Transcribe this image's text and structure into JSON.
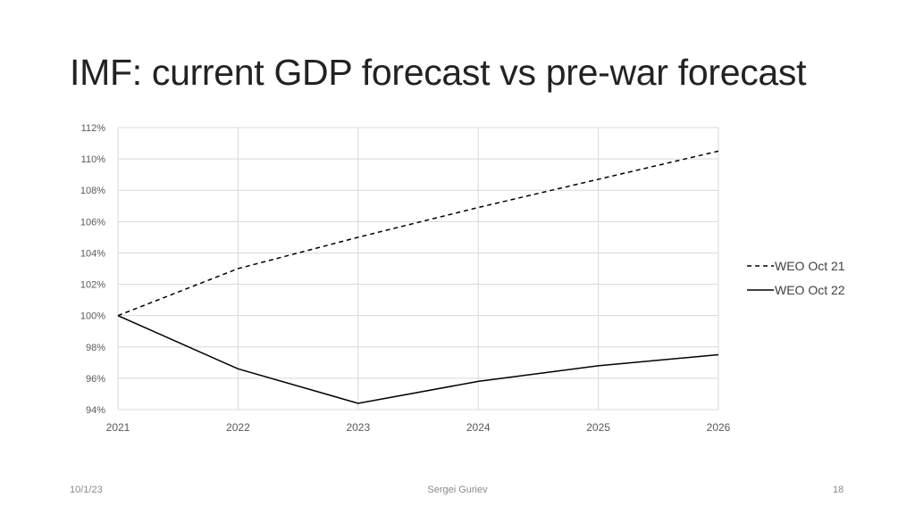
{
  "slide": {
    "title": "IMF: current GDP forecast vs pre-war forecast",
    "footer_date": "10/1/23",
    "footer_author": "Sergei Guriev",
    "page_number": "18"
  },
  "chart_data": {
    "type": "line",
    "title": "",
    "xlabel": "",
    "ylabel": "",
    "x": [
      "2021",
      "2022",
      "2023",
      "2024",
      "2025",
      "2026"
    ],
    "ylim": [
      94,
      112
    ],
    "yticks": [
      94,
      96,
      98,
      100,
      102,
      104,
      106,
      108,
      110,
      112
    ],
    "ytick_labels": [
      "94%",
      "96%",
      "98%",
      "100%",
      "102%",
      "104%",
      "106%",
      "108%",
      "110%",
      "112%"
    ],
    "grid": true,
    "legend_position": "right",
    "series": [
      {
        "name": "WEO Oct 21",
        "style": "dashed",
        "color": "#000000",
        "values": [
          100,
          103.0,
          105.0,
          106.9,
          108.7,
          110.5
        ]
      },
      {
        "name": "WEO Oct 22",
        "style": "solid",
        "color": "#000000",
        "values": [
          100,
          96.6,
          94.4,
          95.8,
          96.8,
          97.5
        ]
      }
    ]
  }
}
